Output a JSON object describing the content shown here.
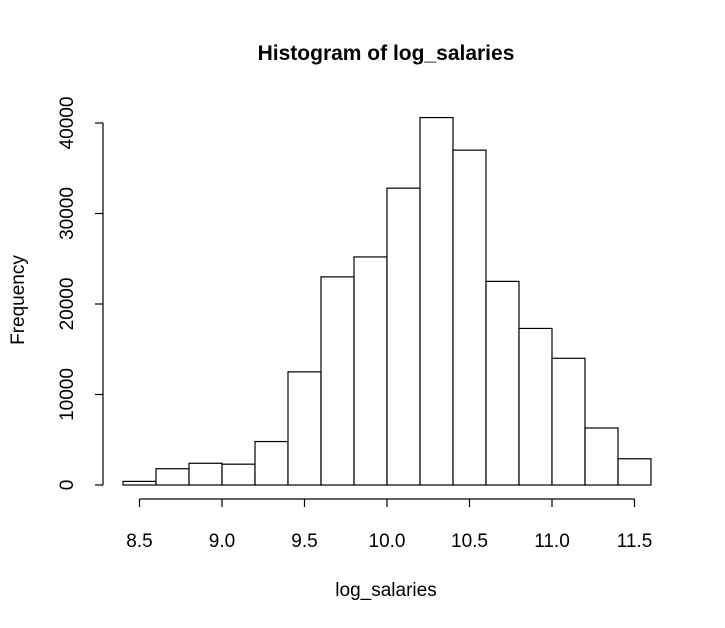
{
  "chart_data": {
    "type": "bar",
    "title": "Histogram of log_salaries",
    "xlabel": "log_salaries",
    "ylabel": "Frequency",
    "bin_edges": [
      8.4,
      8.6,
      8.8,
      9.0,
      9.2,
      9.4,
      9.6,
      9.8,
      10.0,
      10.2,
      10.4,
      10.6,
      10.8,
      11.0,
      11.2,
      11.4,
      11.6
    ],
    "values": [
      400,
      1800,
      2400,
      2300,
      4800,
      12500,
      23000,
      25200,
      32800,
      40600,
      37000,
      22500,
      17300,
      14000,
      6300,
      2900
    ],
    "xlim": [
      8.4,
      11.6
    ],
    "ylim": [
      0,
      40000
    ],
    "xticks": [
      8.5,
      9.0,
      9.5,
      10.0,
      10.5,
      11.0,
      11.5
    ],
    "xtick_labels": [
      "8.5",
      "9.0",
      "9.5",
      "10.0",
      "10.5",
      "11.0",
      "11.5"
    ],
    "yticks": [
      0,
      10000,
      20000,
      30000,
      40000
    ],
    "ytick_labels": [
      "0",
      "10000",
      "20000",
      "30000",
      "40000"
    ],
    "grid": false,
    "colors": {
      "bar_fill": "#ffffff",
      "bar_stroke": "#000000",
      "axis": "#000000"
    }
  }
}
